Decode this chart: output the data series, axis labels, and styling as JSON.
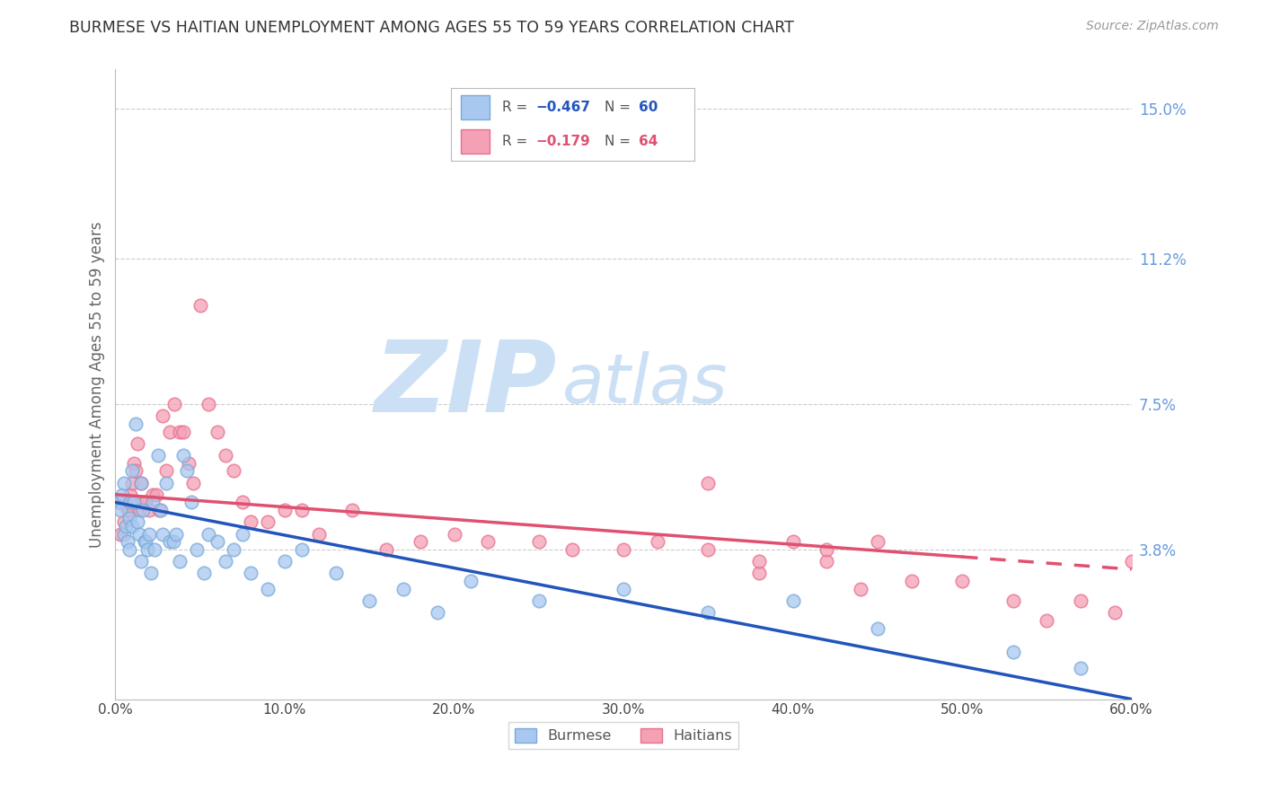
{
  "title": "BURMESE VS HAITIAN UNEMPLOYMENT AMONG AGES 55 TO 59 YEARS CORRELATION CHART",
  "source": "Source: ZipAtlas.com",
  "xlabel": "",
  "ylabel": "Unemployment Among Ages 55 to 59 years",
  "xlim": [
    0.0,
    0.6
  ],
  "ylim": [
    0.0,
    0.16
  ],
  "xtick_labels": [
    "0.0%",
    "10.0%",
    "20.0%",
    "30.0%",
    "40.0%",
    "50.0%",
    "60.0%"
  ],
  "xtick_vals": [
    0.0,
    0.1,
    0.2,
    0.3,
    0.4,
    0.5,
    0.6
  ],
  "ytick_labels_right": [
    "3.8%",
    "7.5%",
    "11.2%",
    "15.0%"
  ],
  "ytick_vals_right": [
    0.038,
    0.075,
    0.112,
    0.15
  ],
  "burmese_color": "#a8c8f0",
  "haitian_color": "#f4a0b5",
  "burmese_edge_color": "#7aaad8",
  "haitian_edge_color": "#e87090",
  "burmese_line_color": "#2255bb",
  "haitian_line_color": "#e05070",
  "grid_color": "#cccccc",
  "background_color": "#ffffff",
  "watermark_zip": "ZIP",
  "watermark_atlas": "atlas",
  "watermark_color": "#cce0f5",
  "burmese_x": [
    0.002,
    0.003,
    0.004,
    0.005,
    0.005,
    0.006,
    0.007,
    0.008,
    0.008,
    0.009,
    0.01,
    0.01,
    0.011,
    0.012,
    0.013,
    0.014,
    0.015,
    0.015,
    0.016,
    0.017,
    0.018,
    0.019,
    0.02,
    0.021,
    0.022,
    0.023,
    0.025,
    0.027,
    0.028,
    0.03,
    0.032,
    0.034,
    0.036,
    0.038,
    0.04,
    0.042,
    0.045,
    0.048,
    0.052,
    0.055,
    0.06,
    0.065,
    0.07,
    0.075,
    0.08,
    0.09,
    0.1,
    0.11,
    0.13,
    0.15,
    0.17,
    0.19,
    0.21,
    0.25,
    0.3,
    0.35,
    0.4,
    0.45,
    0.53,
    0.57
  ],
  "burmese_y": [
    0.05,
    0.048,
    0.052,
    0.055,
    0.042,
    0.044,
    0.04,
    0.046,
    0.038,
    0.05,
    0.058,
    0.044,
    0.05,
    0.07,
    0.045,
    0.042,
    0.055,
    0.035,
    0.048,
    0.04,
    0.04,
    0.038,
    0.042,
    0.032,
    0.05,
    0.038,
    0.062,
    0.048,
    0.042,
    0.055,
    0.04,
    0.04,
    0.042,
    0.035,
    0.062,
    0.058,
    0.05,
    0.038,
    0.032,
    0.042,
    0.04,
    0.035,
    0.038,
    0.042,
    0.032,
    0.028,
    0.035,
    0.038,
    0.032,
    0.025,
    0.028,
    0.022,
    0.03,
    0.025,
    0.028,
    0.022,
    0.025,
    0.018,
    0.012,
    0.008
  ],
  "haitian_x": [
    0.002,
    0.003,
    0.004,
    0.005,
    0.006,
    0.007,
    0.008,
    0.009,
    0.01,
    0.011,
    0.012,
    0.013,
    0.014,
    0.015,
    0.016,
    0.018,
    0.02,
    0.022,
    0.024,
    0.026,
    0.028,
    0.03,
    0.032,
    0.035,
    0.038,
    0.04,
    0.043,
    0.046,
    0.05,
    0.055,
    0.06,
    0.065,
    0.07,
    0.075,
    0.08,
    0.09,
    0.1,
    0.11,
    0.12,
    0.14,
    0.16,
    0.18,
    0.2,
    0.22,
    0.25,
    0.27,
    0.3,
    0.32,
    0.35,
    0.38,
    0.4,
    0.42,
    0.44,
    0.47,
    0.5,
    0.53,
    0.55,
    0.57,
    0.59,
    0.6,
    0.35,
    0.38,
    0.42,
    0.45
  ],
  "haitian_y": [
    0.05,
    0.042,
    0.05,
    0.045,
    0.05,
    0.048,
    0.048,
    0.052,
    0.055,
    0.06,
    0.058,
    0.065,
    0.048,
    0.055,
    0.05,
    0.05,
    0.048,
    0.052,
    0.052,
    0.048,
    0.072,
    0.058,
    0.068,
    0.075,
    0.068,
    0.068,
    0.06,
    0.055,
    0.1,
    0.075,
    0.068,
    0.062,
    0.058,
    0.05,
    0.045,
    0.045,
    0.048,
    0.048,
    0.042,
    0.048,
    0.038,
    0.04,
    0.042,
    0.04,
    0.04,
    0.038,
    0.038,
    0.04,
    0.038,
    0.032,
    0.04,
    0.035,
    0.028,
    0.03,
    0.03,
    0.025,
    0.02,
    0.025,
    0.022,
    0.035,
    0.055,
    0.035,
    0.038,
    0.04
  ]
}
